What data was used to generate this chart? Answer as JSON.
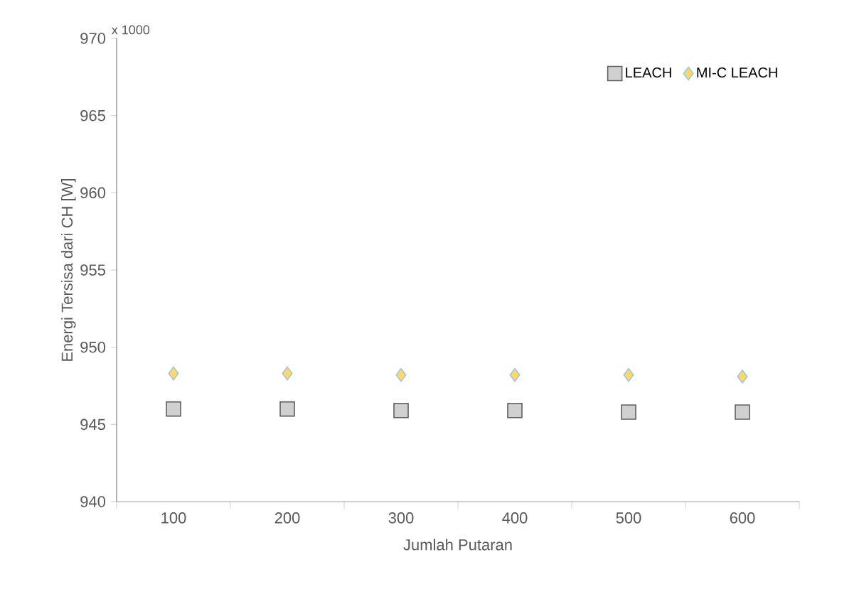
{
  "chart_data": {
    "type": "scatter",
    "xlabel": "Jumlah Putaran",
    "ylabel": "Energi Tersisa dari CH [W]",
    "annotations": [
      "x 1000"
    ],
    "categories": [
      "100",
      "200",
      "300",
      "400",
      "500",
      "600"
    ],
    "series": [
      {
        "name": "LEACH",
        "color": "#d0d0d0",
        "marker": "square",
        "values": [
          946.0,
          946.0,
          945.9,
          945.9,
          945.8,
          945.8
        ]
      },
      {
        "name": "MI-C LEACH",
        "color": "#ffd966",
        "marker": "diamond",
        "values": [
          948.3,
          948.3,
          948.2,
          948.2,
          948.2,
          948.1
        ]
      }
    ],
    "ylim": [
      940,
      970
    ],
    "yticks": [
      940,
      945,
      950,
      955,
      960,
      965,
      970
    ],
    "legend": "top right",
    "grid": false
  }
}
